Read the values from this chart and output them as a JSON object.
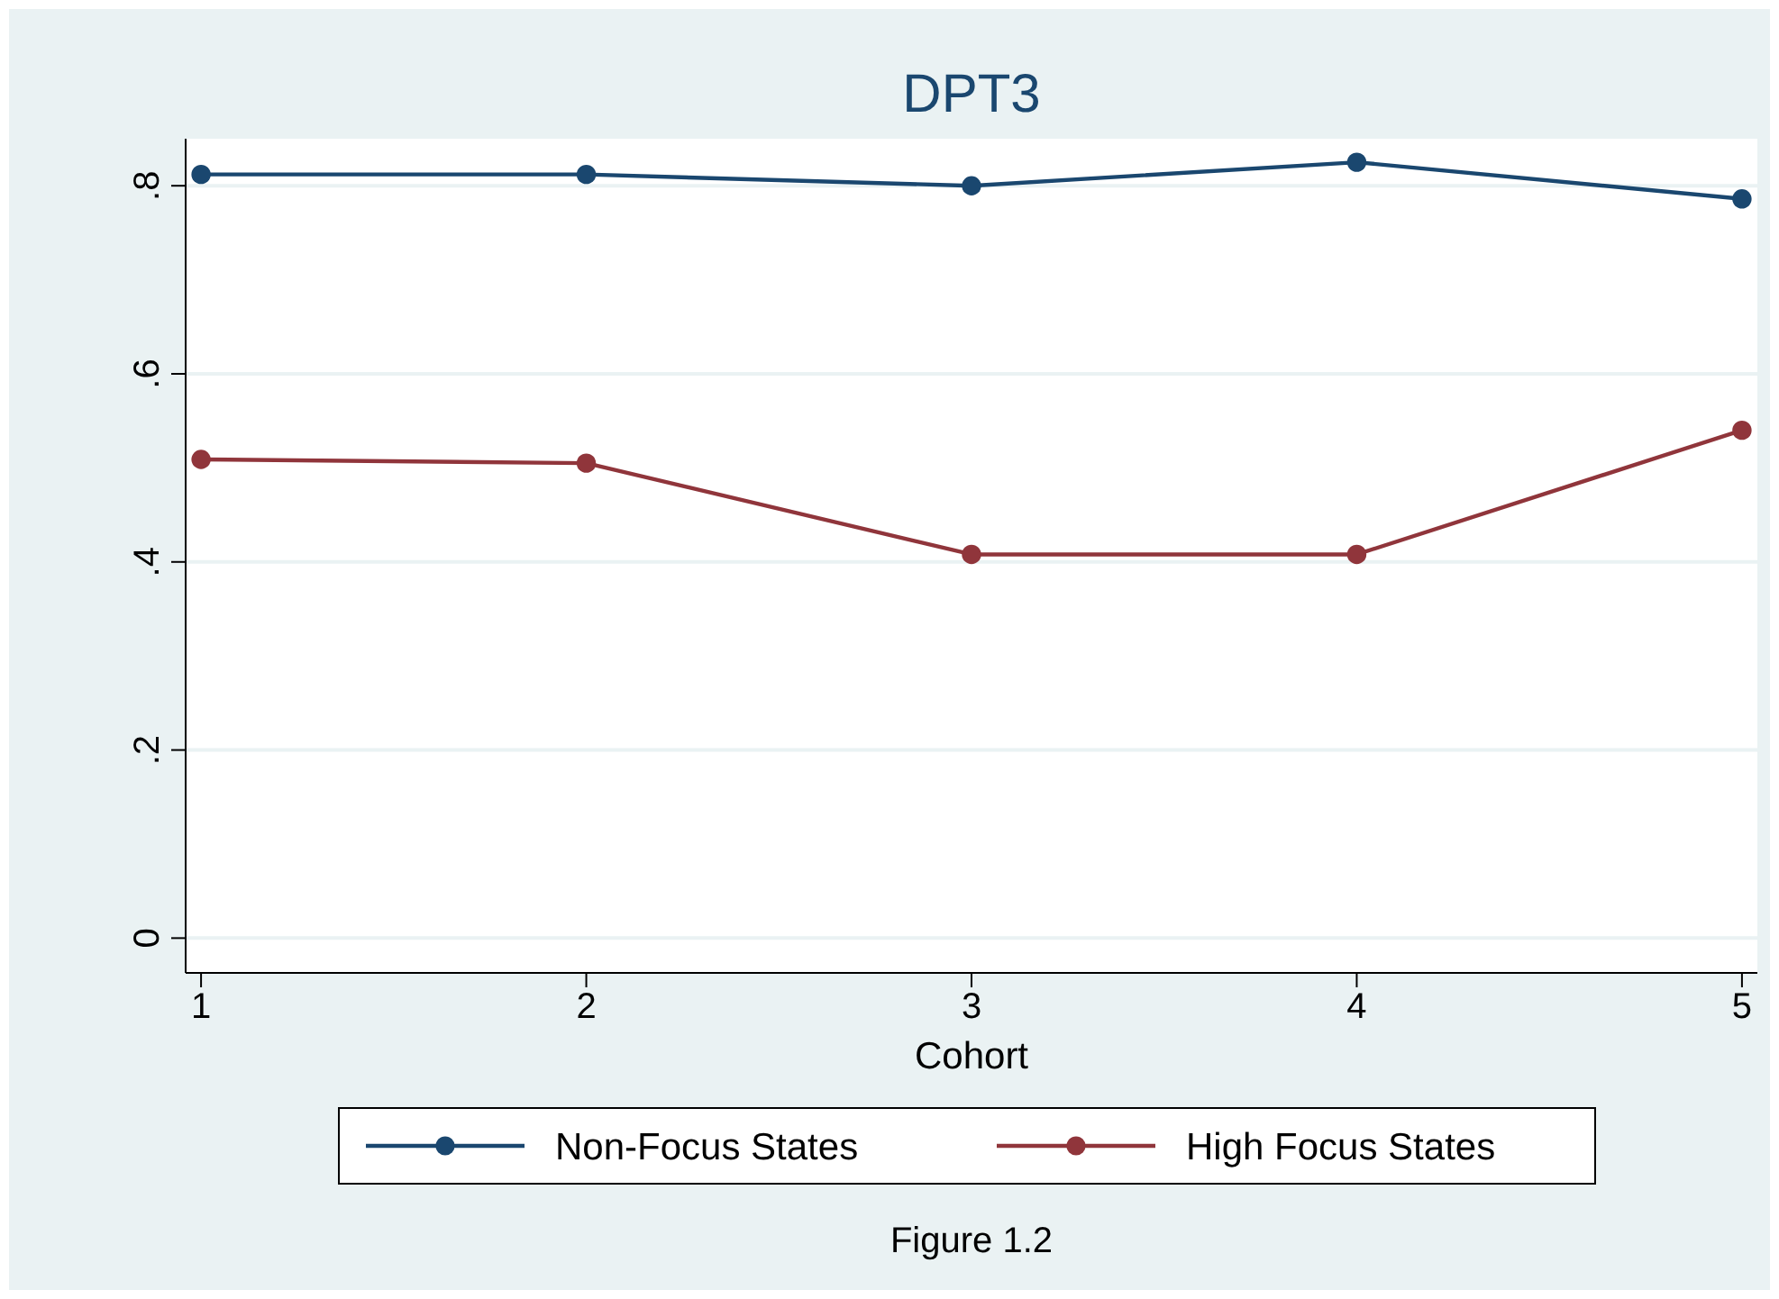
{
  "chart_data": {
    "type": "line",
    "title": "DPT3",
    "xlabel": "Cohort",
    "annotations": [
      "Figure 1.2"
    ],
    "categories": [
      "1",
      "2",
      "3",
      "4",
      "5"
    ],
    "ylim": [
      -0.037,
      0.85
    ],
    "yticks": [
      {
        "value": 0,
        "label": "0"
      },
      {
        "value": 0.2,
        "label": ".2"
      },
      {
        "value": 0.4,
        "label": ".4"
      },
      {
        "value": 0.6,
        "label": ".6"
      },
      {
        "value": 0.8,
        "label": ".8"
      }
    ],
    "series": [
      {
        "name": "Non-Focus States",
        "color": "#1a476f",
        "values": [
          0.812,
          0.812,
          0.8,
          0.825,
          0.786
        ]
      },
      {
        "name": "High Focus States",
        "color": "#90353b",
        "values": [
          0.509,
          0.505,
          0.408,
          0.408,
          0.54
        ]
      }
    ],
    "grid": "y",
    "marker": "circle",
    "line_style": "solid",
    "legend": "bottom"
  }
}
